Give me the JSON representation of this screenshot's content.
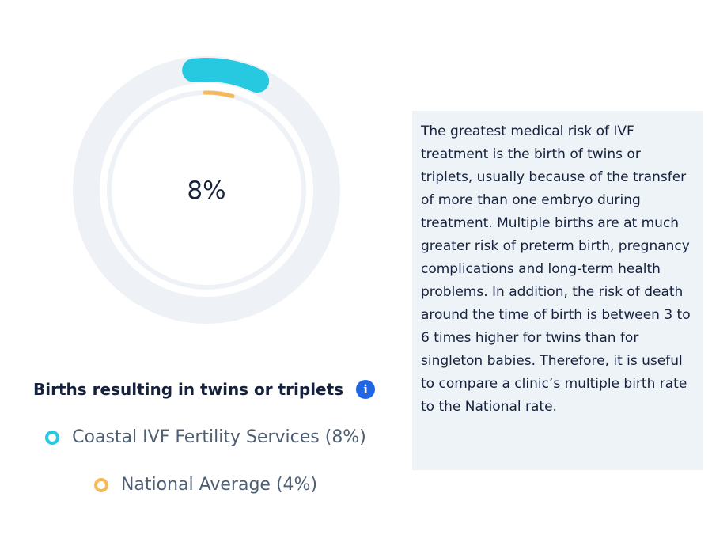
{
  "chart_data": {
    "type": "donut",
    "title": "Births resulting in twins or triplets",
    "center_label": "8%",
    "series": [
      {
        "name": "Coastal IVF Fertility Services",
        "value": 8,
        "unit": "%",
        "color": "#26c9e0",
        "ring": "outer"
      },
      {
        "name": "National Average",
        "value": 4,
        "unit": "%",
        "color": "#f7b955",
        "ring": "inner"
      }
    ],
    "track_color": "#eef2f7"
  },
  "legend": [
    {
      "label": "Coastal IVF Fertility Services (8%)",
      "color": "#26c9e0"
    },
    {
      "label": "National Average (4%)",
      "color": "#f7b955"
    }
  ],
  "info_icon": {
    "icon": "info-icon",
    "glyph": "i",
    "color": "#1f66e5"
  },
  "info_panel": {
    "text": "The greatest medical risk of IVF treatment is the birth of twins or triplets, usually because of the transfer of more than one embryo during treatment. Multiple births are at much greater risk of preterm birth, pregnancy complications and long-term health problems. In addition, the risk of death around the time of birth is between 3 to 6 times higher for twins than for singleton babies. Therefore, it is useful to compare a clinic’s multiple birth rate to the National rate."
  }
}
